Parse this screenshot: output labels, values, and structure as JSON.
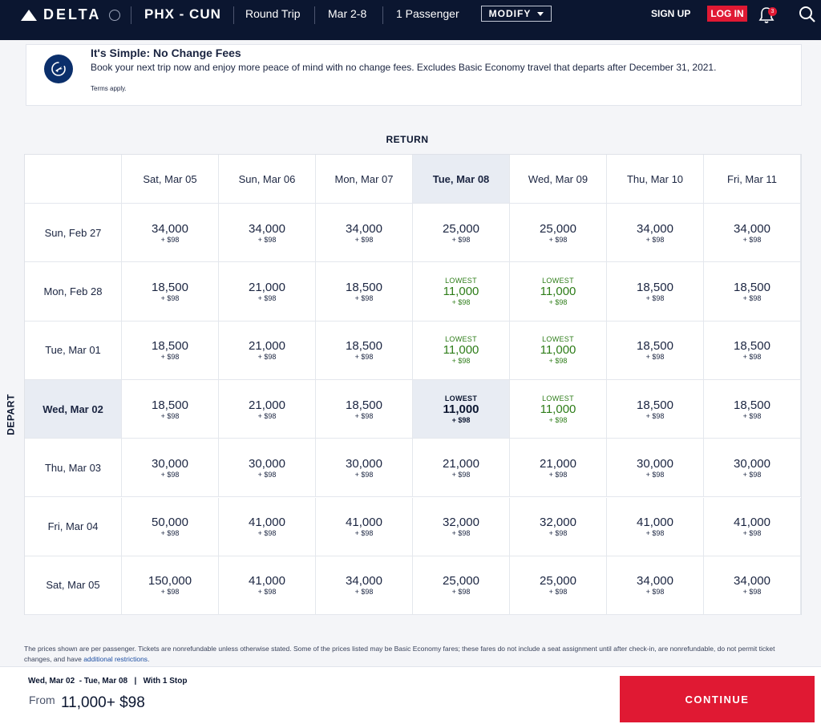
{
  "header": {
    "brand": "DELTA",
    "route": "PHX - CUN",
    "trip_type": "Round Trip",
    "dates": "Mar 2-8",
    "passengers": "1 Passenger",
    "modify_label": "MODIFY",
    "signup_label": "SIGN UP",
    "login_label": "LOG IN",
    "notification_count": "3"
  },
  "banner": {
    "title": "It's Simple: No Change Fees",
    "body": "Book your next trip now and enjoy more peace of mind with no change fees. Excludes Basic Economy travel that departs after December 31, 2021.",
    "terms": "Terms apply."
  },
  "grid": {
    "return_label": "RETURN",
    "depart_label": "DEPART",
    "lowest_label": "LOWEST",
    "selected_return_index": 3,
    "selected_depart_index": 3,
    "return_dates": [
      "Sat, Mar 05",
      "Sun, Mar 06",
      "Mon, Mar 07",
      "Tue, Mar 08",
      "Wed, Mar 09",
      "Thu, Mar 10",
      "Fri, Mar 11"
    ],
    "depart_dates": [
      "Sun, Feb 27",
      "Mon, Feb 28",
      "Tue, Mar 01",
      "Wed, Mar 02",
      "Thu, Mar 03",
      "Fri, Mar 04",
      "Sat, Mar 05"
    ],
    "rows": [
      [
        {
          "points": "34,000",
          "tax": "+ $98"
        },
        {
          "points": "34,000",
          "tax": "+ $98"
        },
        {
          "points": "34,000",
          "tax": "+ $98"
        },
        {
          "points": "25,000",
          "tax": "+ $98"
        },
        {
          "points": "25,000",
          "tax": "+ $98"
        },
        {
          "points": "34,000",
          "tax": "+ $98"
        },
        {
          "points": "34,000",
          "tax": "+ $98"
        }
      ],
      [
        {
          "points": "18,500",
          "tax": "+ $98"
        },
        {
          "points": "21,000",
          "tax": "+ $98"
        },
        {
          "points": "18,500",
          "tax": "+ $98"
        },
        {
          "points": "11,000",
          "tax": "+ $98",
          "lowest": true
        },
        {
          "points": "11,000",
          "tax": "+ $98",
          "lowest": true
        },
        {
          "points": "18,500",
          "tax": "+ $98"
        },
        {
          "points": "18,500",
          "tax": "+ $98"
        }
      ],
      [
        {
          "points": "18,500",
          "tax": "+ $98"
        },
        {
          "points": "21,000",
          "tax": "+ $98"
        },
        {
          "points": "18,500",
          "tax": "+ $98"
        },
        {
          "points": "11,000",
          "tax": "+ $98",
          "lowest": true
        },
        {
          "points": "11,000",
          "tax": "+ $98",
          "lowest": true
        },
        {
          "points": "18,500",
          "tax": "+ $98"
        },
        {
          "points": "18,500",
          "tax": "+ $98"
        }
      ],
      [
        {
          "points": "18,500",
          "tax": "+ $98"
        },
        {
          "points": "21,000",
          "tax": "+ $98"
        },
        {
          "points": "18,500",
          "tax": "+ $98"
        },
        {
          "points": "11,000",
          "tax": "+ $98",
          "lowest": true
        },
        {
          "points": "11,000",
          "tax": "+ $98",
          "lowest": true
        },
        {
          "points": "18,500",
          "tax": "+ $98"
        },
        {
          "points": "18,500",
          "tax": "+ $98"
        }
      ],
      [
        {
          "points": "30,000",
          "tax": "+ $98"
        },
        {
          "points": "30,000",
          "tax": "+ $98"
        },
        {
          "points": "30,000",
          "tax": "+ $98"
        },
        {
          "points": "21,000",
          "tax": "+ $98"
        },
        {
          "points": "21,000",
          "tax": "+ $98"
        },
        {
          "points": "30,000",
          "tax": "+ $98"
        },
        {
          "points": "30,000",
          "tax": "+ $98"
        }
      ],
      [
        {
          "points": "50,000",
          "tax": "+ $98"
        },
        {
          "points": "41,000",
          "tax": "+ $98"
        },
        {
          "points": "41,000",
          "tax": "+ $98"
        },
        {
          "points": "32,000",
          "tax": "+ $98"
        },
        {
          "points": "32,000",
          "tax": "+ $98"
        },
        {
          "points": "41,000",
          "tax": "+ $98"
        },
        {
          "points": "41,000",
          "tax": "+ $98"
        }
      ],
      [
        {
          "points": "150,000",
          "tax": "+ $98"
        },
        {
          "points": "41,000",
          "tax": "+ $98"
        },
        {
          "points": "34,000",
          "tax": "+ $98"
        },
        {
          "points": "25,000",
          "tax": "+ $98"
        },
        {
          "points": "25,000",
          "tax": "+ $98"
        },
        {
          "points": "34,000",
          "tax": "+ $98"
        },
        {
          "points": "34,000",
          "tax": "+ $98"
        }
      ]
    ]
  },
  "disclaimer": {
    "text": "The prices shown are per passenger. Tickets are nonrefundable unless otherwise stated. Some of the prices listed may be Basic Economy fares; these fares do not include a seat assignment until after check-in, are nonrefundable, do not permit ticket changes, and have ",
    "link": "additional restrictions",
    "end": "."
  },
  "footer": {
    "trip_summary": "Wed, Mar 02  - Tue, Mar 08   |   With 1 Stop",
    "from_label": "From",
    "price": "11,000+ $98",
    "continue_label": "CONTINUE"
  },
  "colors": {
    "navy": "#0b1630",
    "red": "#e01933",
    "lowest_green": "#2e7d19",
    "selected_bg": "#e8ecf3"
  }
}
